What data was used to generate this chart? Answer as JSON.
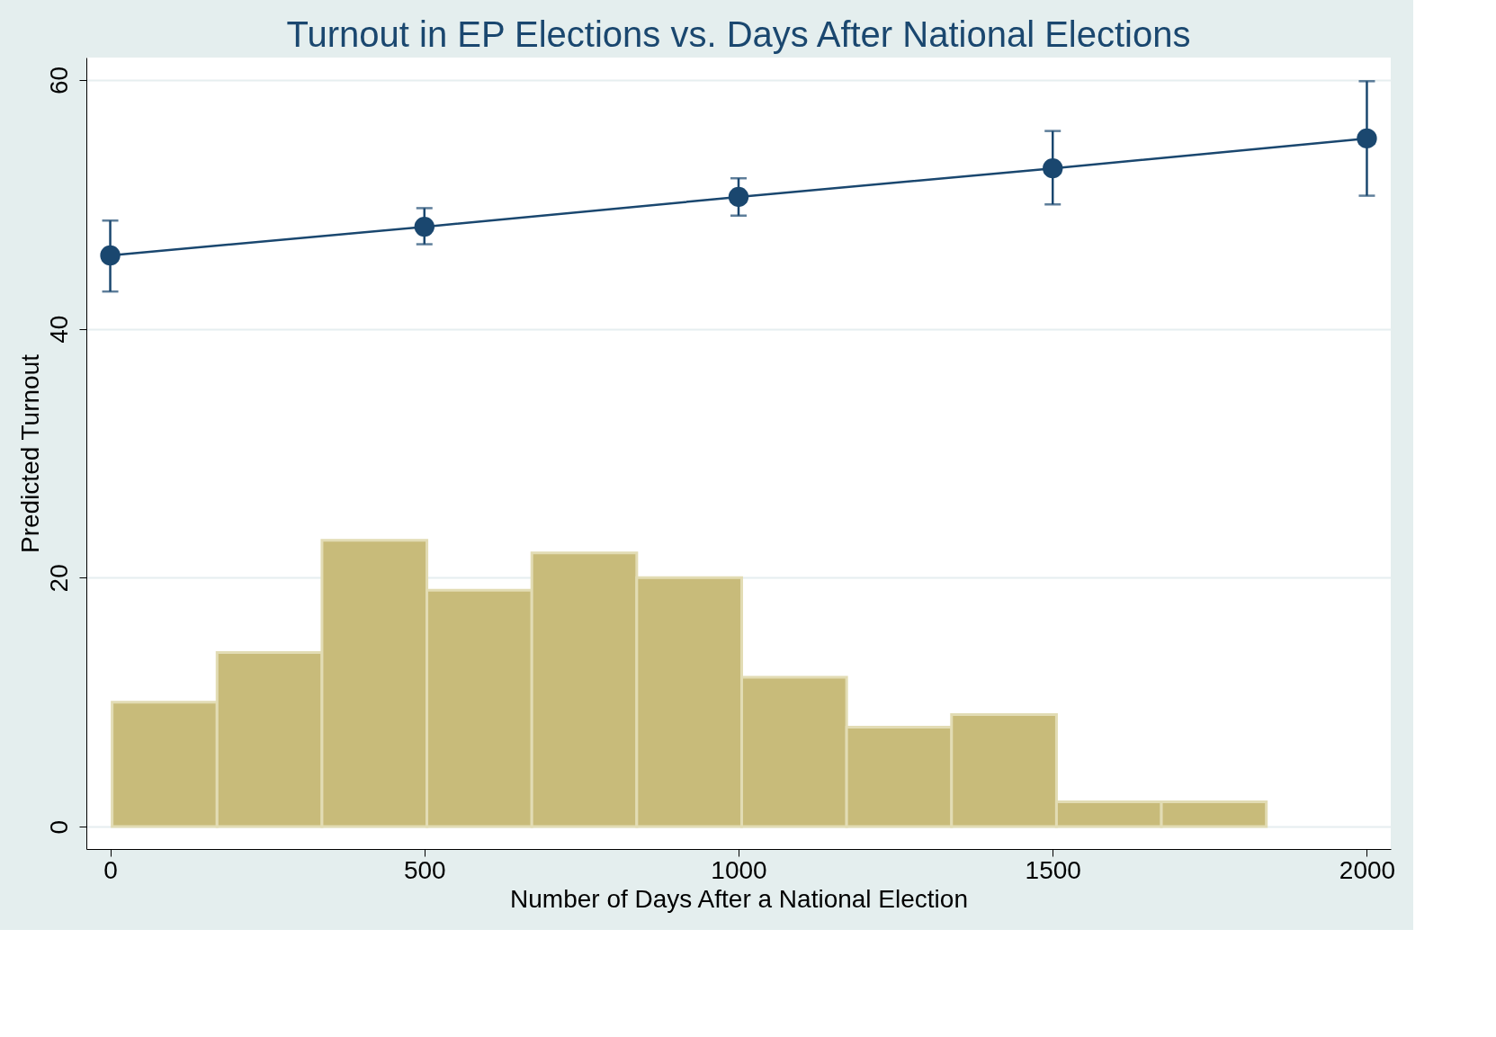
{
  "chart_data": {
    "type": "line",
    "title": "Turnout in EP Elections vs. Days After National Elections",
    "xlabel": "Number of Days After a National Election",
    "ylabel": "Predicted Turnout",
    "xlim": [
      -38,
      2038
    ],
    "ylim": [
      -1.8,
      61.8
    ],
    "xticks": [
      0,
      500,
      1000,
      1500,
      2000
    ],
    "yticks": [
      0,
      20,
      40,
      60
    ],
    "grid": "y",
    "marker": "circle",
    "series": [
      {
        "type": "histogram",
        "color": "#c8bb7a",
        "bins": [
          3,
          170,
          337,
          504,
          671,
          838,
          1005,
          1172,
          1339,
          1506,
          1673,
          1840
        ],
        "values": [
          10,
          14,
          23,
          19,
          22,
          20,
          12,
          8,
          9,
          2,
          2
        ]
      },
      {
        "type": "line",
        "color": "#1a476f",
        "x": [
          0,
          500,
          1000,
          1500,
          2000
        ],
        "values": [
          45.9,
          48.2,
          50.6,
          52.9,
          55.3
        ],
        "errors": [
          [
            43.0,
            48.7
          ],
          [
            46.8,
            49.7
          ],
          [
            49.1,
            52.1
          ],
          [
            50.0,
            55.9
          ],
          [
            50.7,
            59.9
          ]
        ]
      }
    ]
  }
}
